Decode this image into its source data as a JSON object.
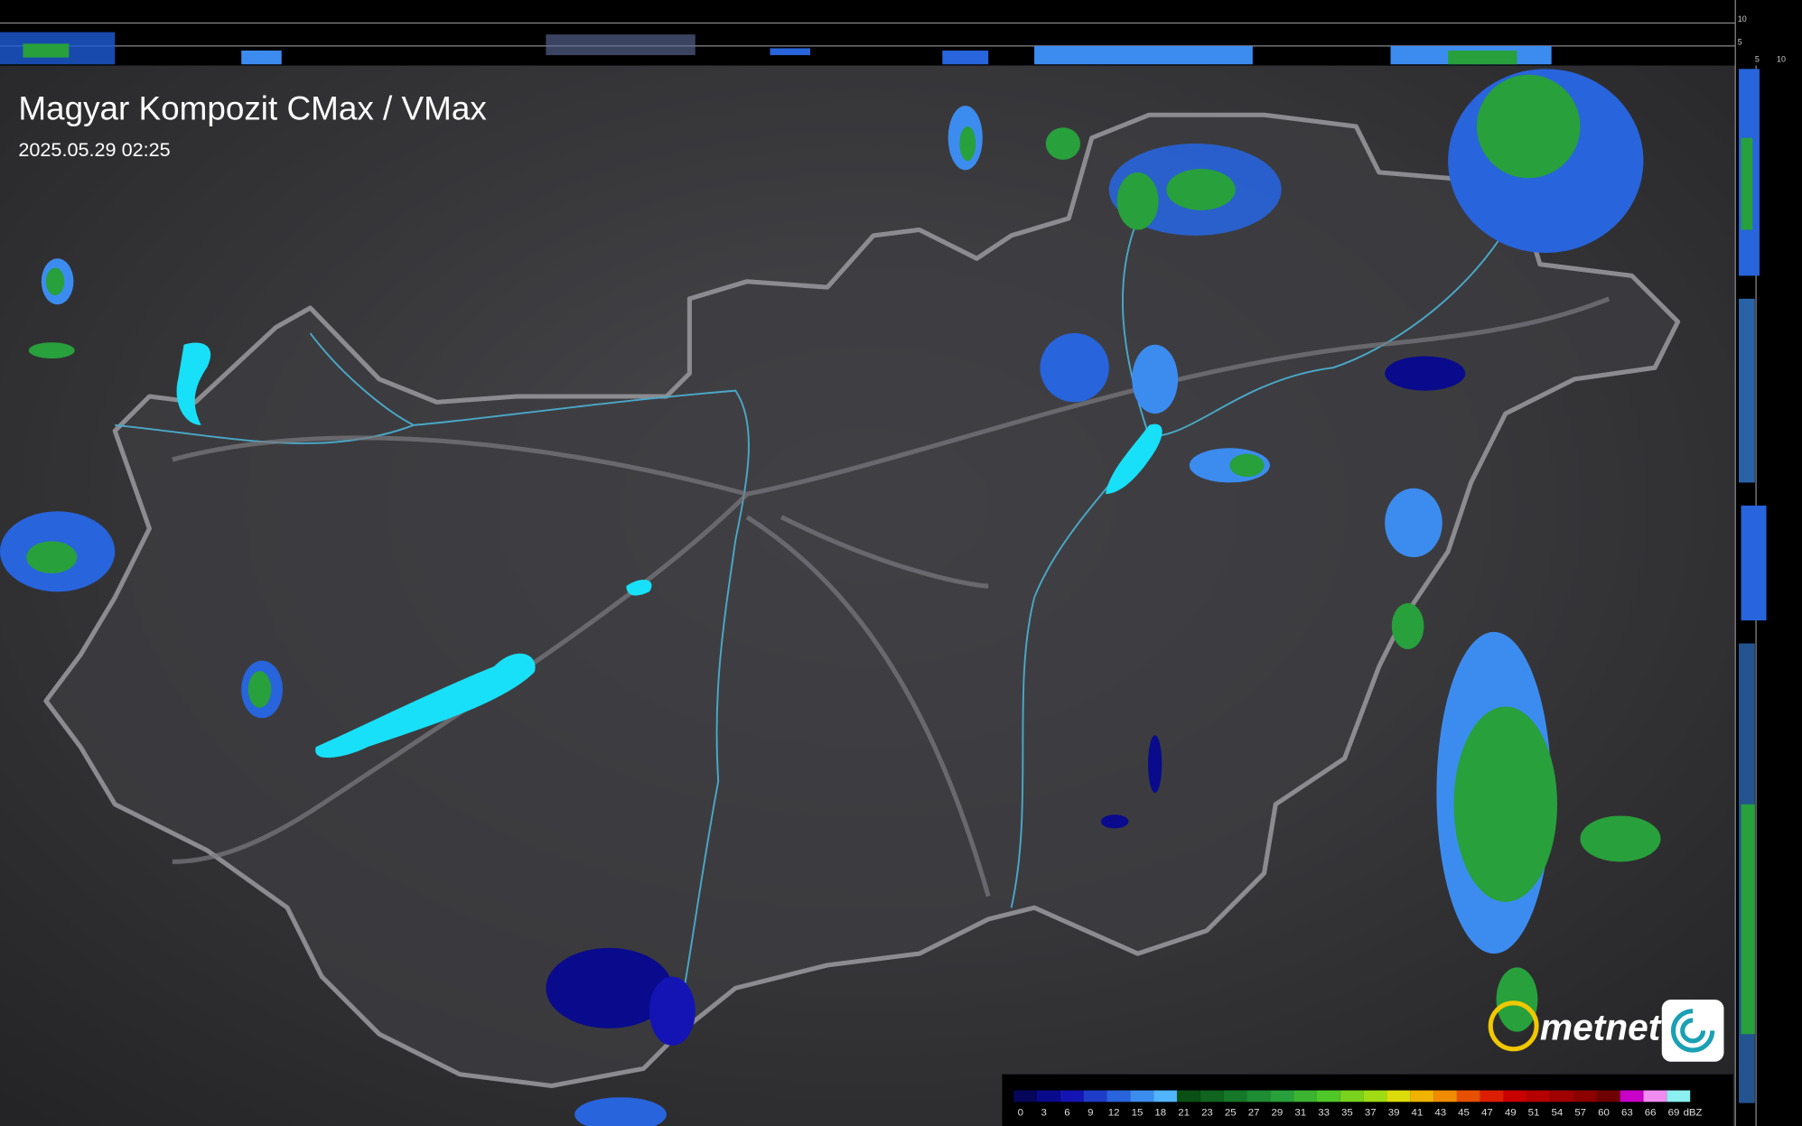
{
  "header": {
    "title": "Magyar Kompozit CMax / VMax",
    "timestamp": "2025.05.29 02:25"
  },
  "logo": {
    "text": "metnet"
  },
  "profile": {
    "right_labels": [
      "10",
      "5"
    ],
    "bottom_labels": [
      "5",
      "10"
    ]
  },
  "legend": {
    "unit": "dBZ",
    "items": [
      {
        "label": "0",
        "color": "#06065a"
      },
      {
        "label": "3",
        "color": "#0a0a8c"
      },
      {
        "label": "6",
        "color": "#1414b4"
      },
      {
        "label": "9",
        "color": "#1e3cc8"
      },
      {
        "label": "12",
        "color": "#2864dc"
      },
      {
        "label": "15",
        "color": "#3c8cf0"
      },
      {
        "label": "18",
        "color": "#50b4ff"
      },
      {
        "label": "21",
        "color": "#0a5014"
      },
      {
        "label": "23",
        "color": "#0f641e"
      },
      {
        "label": "25",
        "color": "#147828"
      },
      {
        "label": "27",
        "color": "#1e8c32"
      },
      {
        "label": "29",
        "color": "#28a03c"
      },
      {
        "label": "31",
        "color": "#3cb432"
      },
      {
        "label": "33",
        "color": "#50c828"
      },
      {
        "label": "35",
        "color": "#78d21e"
      },
      {
        "label": "37",
        "color": "#a0dc14"
      },
      {
        "label": "39",
        "color": "#dcdc0a"
      },
      {
        "label": "41",
        "color": "#f0b400"
      },
      {
        "label": "43",
        "color": "#f08c00"
      },
      {
        "label": "45",
        "color": "#e65000"
      },
      {
        "label": "47",
        "color": "#dc1e00"
      },
      {
        "label": "49",
        "color": "#c80000"
      },
      {
        "label": "51",
        "color": "#b40000"
      },
      {
        "label": "54",
        "color": "#a00000"
      },
      {
        "label": "57",
        "color": "#8c0000"
      },
      {
        "label": "60",
        "color": "#6e0000"
      },
      {
        "label": "63",
        "color": "#c800c8"
      },
      {
        "label": "66",
        "color": "#f08cf0"
      },
      {
        "label": "69",
        "color": "#8cf0f0"
      }
    ]
  }
}
